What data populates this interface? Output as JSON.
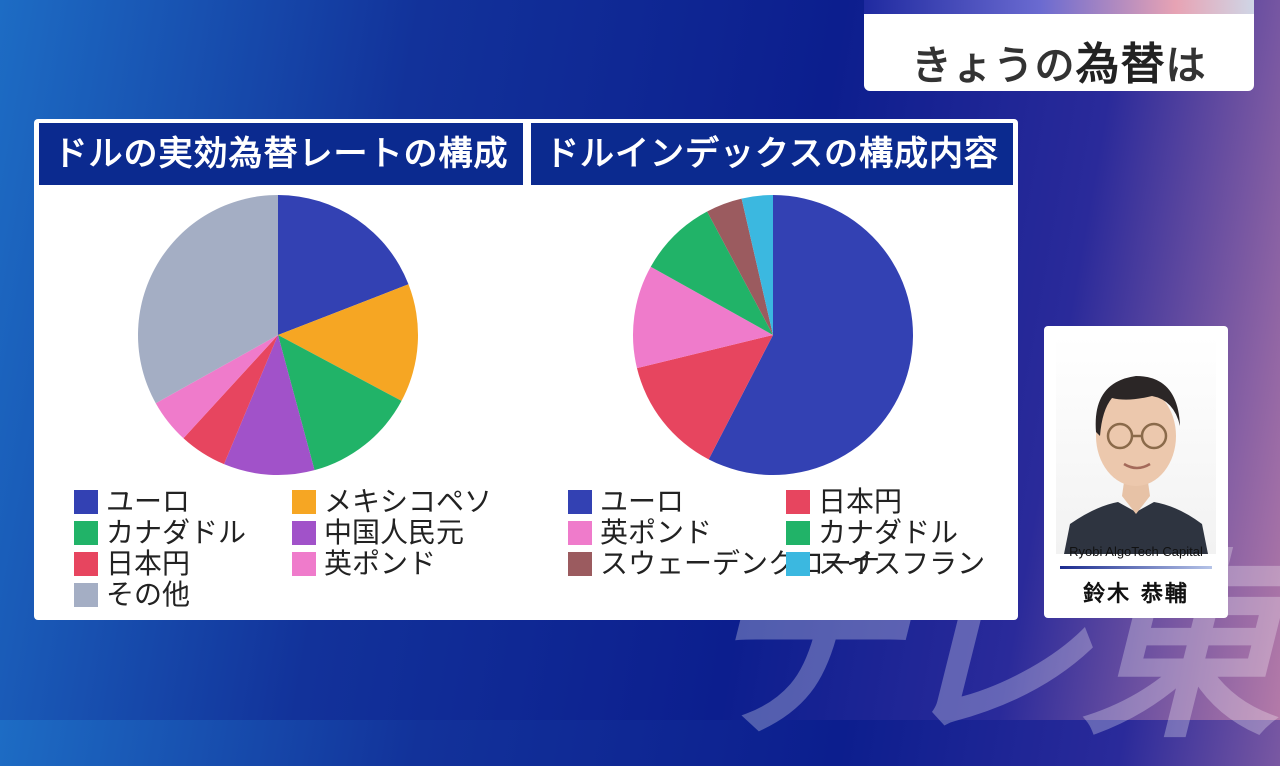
{
  "header": {
    "title_pre": "きょうの",
    "title_big": "為替",
    "title_post": "は"
  },
  "watermark": "テレ東",
  "chart_data": [
    {
      "type": "pie",
      "title": "ドルの実効為替レートの構成内容",
      "slices": [
        {
          "label": "ユーロ",
          "value": 19.1,
          "color": "#3341b3"
        },
        {
          "label": "メキシコペソ",
          "value": 13.7,
          "color": "#f6a623"
        },
        {
          "label": "カナダドル",
          "value": 13.0,
          "color": "#21b368"
        },
        {
          "label": "中国人民元",
          "value": 10.5,
          "color": "#a152c9"
        },
        {
          "label": "日本円",
          "value": 5.5,
          "color": "#e7455f"
        },
        {
          "label": "英ポンド",
          "value": 5.1,
          "color": "#ef7bcb"
        },
        {
          "label": "その他",
          "value": 33.1,
          "color": "#a4aec4"
        }
      ]
    },
    {
      "type": "pie",
      "title": "ドルインデックスの構成内容",
      "slices": [
        {
          "label": "ユーロ",
          "value": 57.6,
          "color": "#3341b3"
        },
        {
          "label": "日本円",
          "value": 13.6,
          "color": "#e7455f"
        },
        {
          "label": "英ポンド",
          "value": 11.9,
          "color": "#ef7bcb"
        },
        {
          "label": "カナダドル",
          "value": 9.1,
          "color": "#21b368"
        },
        {
          "label": "スウェーデンクローナ",
          "value": 4.2,
          "color": "#9b5b5f"
        },
        {
          "label": "スイスフラン",
          "value": 3.6,
          "color": "#3bb8e0"
        }
      ]
    }
  ],
  "commentator": {
    "company": "Ryobi AlgoTech Capital",
    "name": "鈴木 恭輔"
  }
}
